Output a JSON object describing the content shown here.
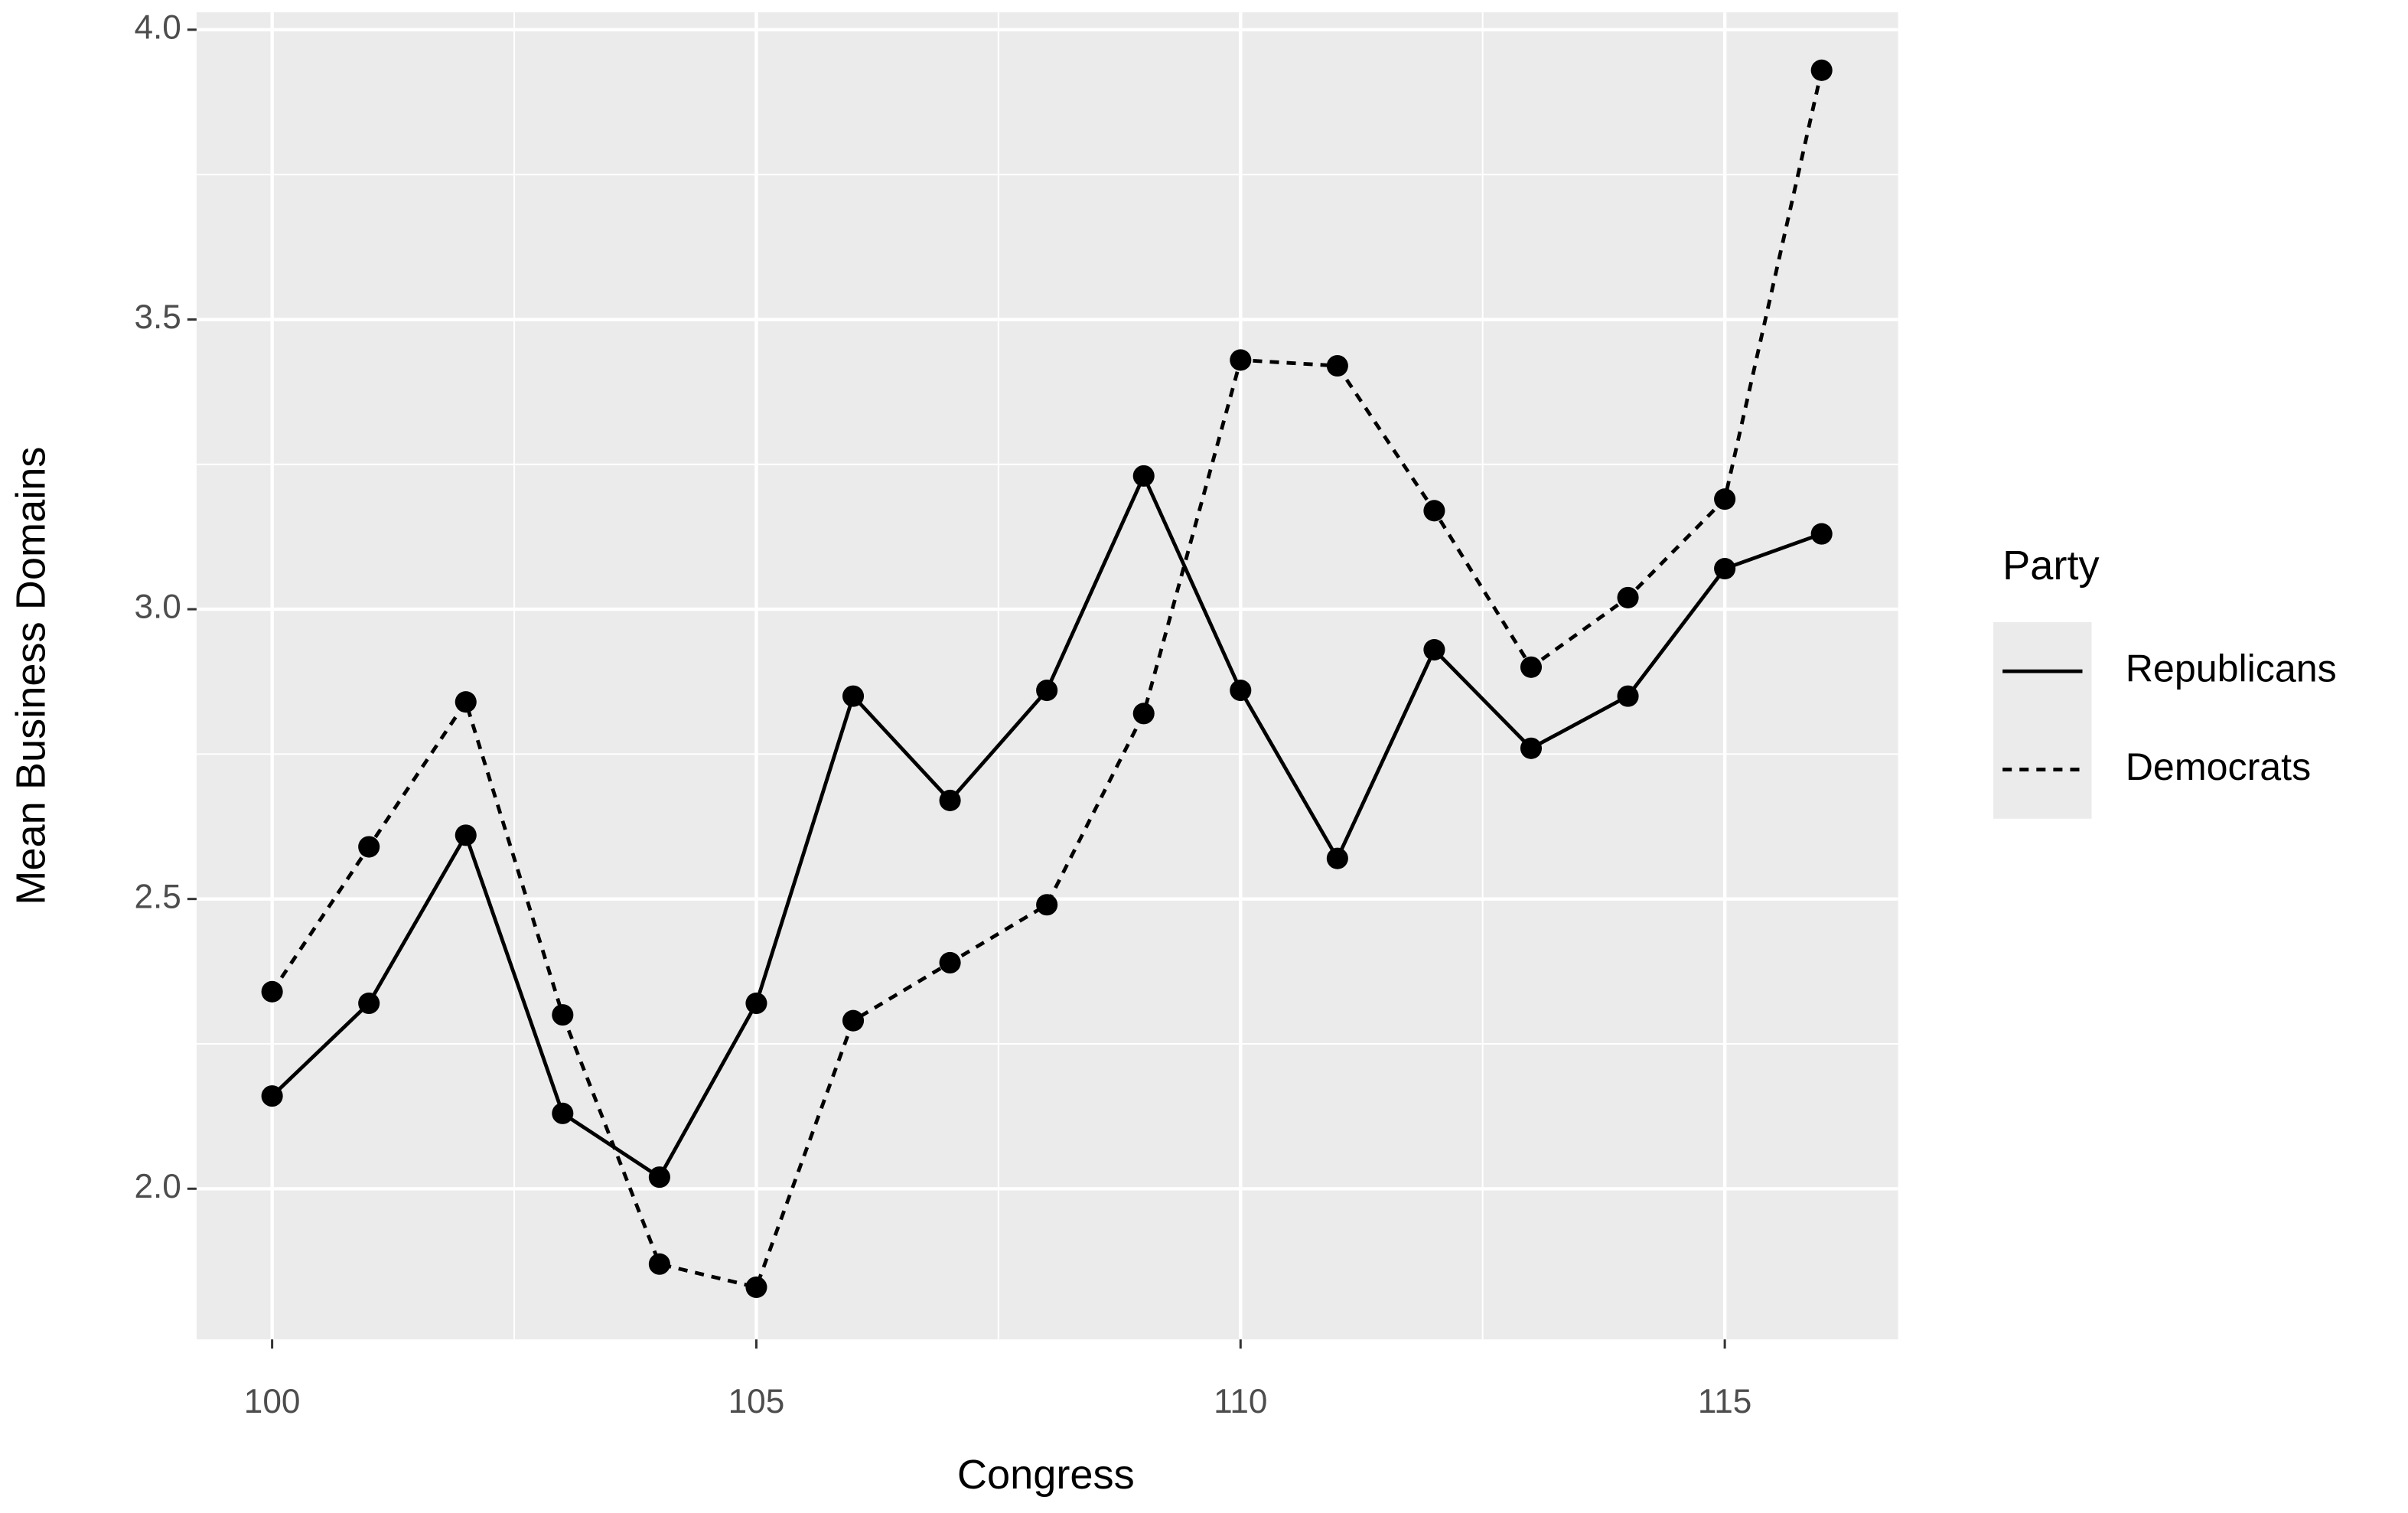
{
  "chart_data": {
    "type": "line",
    "x_label": "Congress",
    "y_label": "Mean Business Domains",
    "x": [
      100,
      101,
      102,
      103,
      104,
      105,
      106,
      107,
      108,
      109,
      110,
      111,
      112,
      113,
      114,
      115,
      116
    ],
    "series": [
      {
        "name": "Republicans",
        "color": "#000000",
        "dash": "solid",
        "values": [
          2.16,
          2.32,
          2.61,
          2.13,
          2.02,
          2.32,
          2.85,
          2.67,
          2.86,
          3.23,
          2.86,
          2.57,
          2.93,
          2.76,
          2.85,
          3.07,
          3.13
        ]
      },
      {
        "name": "Democrats",
        "color": "#000000",
        "dash": "dotted",
        "values": [
          2.34,
          2.59,
          2.84,
          2.3,
          1.87,
          1.83,
          2.29,
          2.39,
          2.49,
          2.82,
          3.43,
          3.42,
          3.17,
          2.9,
          3.02,
          3.19,
          3.93
        ]
      }
    ],
    "legend_title": "Party",
    "legend_position": "right",
    "xlim": [
      99.22,
      116.79
    ],
    "ylim": [
      1.74,
      4.03
    ],
    "xticks": [
      100,
      105,
      110,
      115
    ],
    "yticks": [
      {
        "value": 2,
        "label": "2.0"
      },
      2.5,
      {
        "value": 3,
        "label": "3.0"
      },
      3.5,
      {
        "value": 4,
        "label": "4.0"
      }
    ],
    "grid": true,
    "background": "#ebebeb"
  }
}
